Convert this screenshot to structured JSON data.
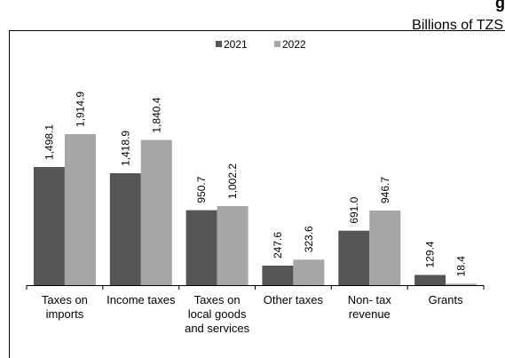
{
  "header": {
    "title_fragment": "g",
    "unit": "Billions of TZS"
  },
  "colors": {
    "series_2021": "#555555",
    "series_2022": "#a6a6a6",
    "axis": "#000000",
    "frame": "#000000"
  },
  "chart_data": {
    "type": "bar",
    "categories": [
      [
        "Taxes on",
        "imports"
      ],
      [
        "Income taxes"
      ],
      [
        "Taxes on",
        "local goods",
        "and services"
      ],
      [
        "Other taxes"
      ],
      [
        "Non- tax",
        "revenue"
      ],
      [
        "Grants"
      ]
    ],
    "series": [
      {
        "name": "2021",
        "values": [
          1498.1,
          1418.9,
          950.7,
          247.6,
          691.0,
          129.4
        ],
        "labels": [
          "1,498.1",
          "1,418.9",
          "950.7",
          "247.6",
          "691.0",
          "129.4"
        ]
      },
      {
        "name": "2022",
        "values": [
          1914.9,
          1840.4,
          1002.2,
          323.6,
          946.7,
          18.4
        ],
        "labels": [
          "1,914.9",
          "1,840.4",
          "1,002.2",
          "323.6",
          "946.7",
          "18.4"
        ]
      }
    ],
    "ylim": [
      0,
      2400
    ],
    "grid": false,
    "legend_position": "top-center"
  }
}
